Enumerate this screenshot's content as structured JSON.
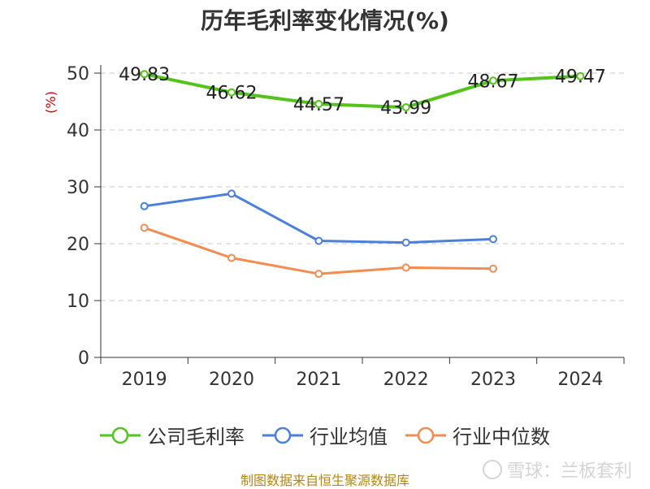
{
  "chart_data": {
    "type": "line",
    "title": "历年毛利率变化情况(%)",
    "ylabel": "(%)",
    "xlabel": "",
    "categories": [
      "2019",
      "2020",
      "2021",
      "2022",
      "2023",
      "2024"
    ],
    "ylim": [
      0,
      50
    ],
    "yticks": [
      0,
      10,
      20,
      30,
      40,
      50
    ],
    "grid": true,
    "legend_position": "bottom",
    "series": [
      {
        "name": "公司毛利率",
        "color": "#52c41a",
        "values": [
          49.83,
          46.62,
          44.57,
          43.99,
          48.67,
          49.47
        ],
        "labels": [
          "49.83",
          "46.62",
          "44.57",
          "43.99",
          "48.67",
          "49.47"
        ]
      },
      {
        "name": "行业均值",
        "color": "#4a7fdc",
        "values": [
          26.6,
          28.8,
          20.5,
          20.2,
          20.8,
          null
        ]
      },
      {
        "name": "行业中位数",
        "color": "#f28c50",
        "values": [
          22.8,
          17.5,
          14.7,
          15.8,
          15.6,
          null
        ]
      }
    ]
  },
  "footer": {
    "source": "制图数据来自恒生聚源数据库"
  },
  "watermark": {
    "text": "雪球：兰板套利"
  }
}
